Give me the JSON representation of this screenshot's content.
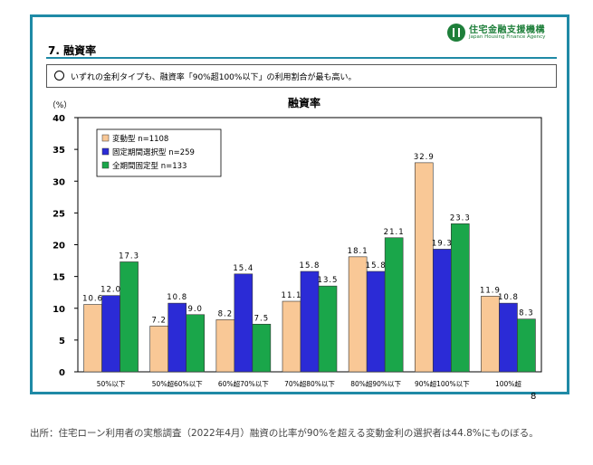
{
  "header": {
    "logo_jp": "住宅金融支援機構",
    "logo_en": "Japan Housing Finance Agency",
    "section_title": "7. 融資率",
    "note": "いずれの金利タイプも、融資率「90%超100%以下」の利用割合が最も高い。",
    "page_number": "8"
  },
  "caption": "出所：住宅ローン利用者の実態調査（2022年4月）融資の比率が90%を超える変動金利の選択者は44.8%にものぼる。",
  "colors": {
    "frame": "#1f8aa6",
    "variable": "#f9c896",
    "fixed_period": "#2b2bd6",
    "full_fixed": "#1aa64a"
  },
  "chart_data": {
    "type": "bar",
    "title": "融資率",
    "ylabel": "（%）",
    "xlabel": "",
    "ylim": [
      0,
      40
    ],
    "yticks": [
      0,
      5,
      10,
      15,
      20,
      25,
      30,
      35,
      40
    ],
    "grid": false,
    "legend_position": "top-left",
    "categories": [
      "50%以下",
      "50%超60%以下",
      "60%超70%以下",
      "70%超80%以下",
      "80%超90%以下",
      "90%超100%以下",
      "100%超"
    ],
    "series": [
      {
        "name": "変動型",
        "n": "n=1108",
        "color": "#f9c896",
        "values": [
          10.6,
          7.2,
          8.2,
          11.1,
          18.1,
          32.9,
          11.9
        ],
        "labels": [
          "10.6",
          "7.2",
          "8.2",
          "11.1",
          "18.1",
          "32.9",
          "11.9"
        ]
      },
      {
        "name": "固定期間選択型",
        "n": "n=259",
        "color": "#2b2bd6",
        "values": [
          12.0,
          10.8,
          15.4,
          15.8,
          15.8,
          19.3,
          10.8
        ],
        "labels": [
          "12.0",
          "10.8",
          "15.4",
          "15.8",
          "15.8",
          "19.3",
          "10.8"
        ]
      },
      {
        "name": "全期間固定型",
        "n": "n=133",
        "color": "#1aa64a",
        "values": [
          17.3,
          9.0,
          7.5,
          13.5,
          21.1,
          23.3,
          8.3
        ],
        "labels": [
          "17.3",
          "9.0",
          "7.5",
          "13.5",
          "21.1",
          "23.3",
          "8.3"
        ]
      }
    ]
  }
}
